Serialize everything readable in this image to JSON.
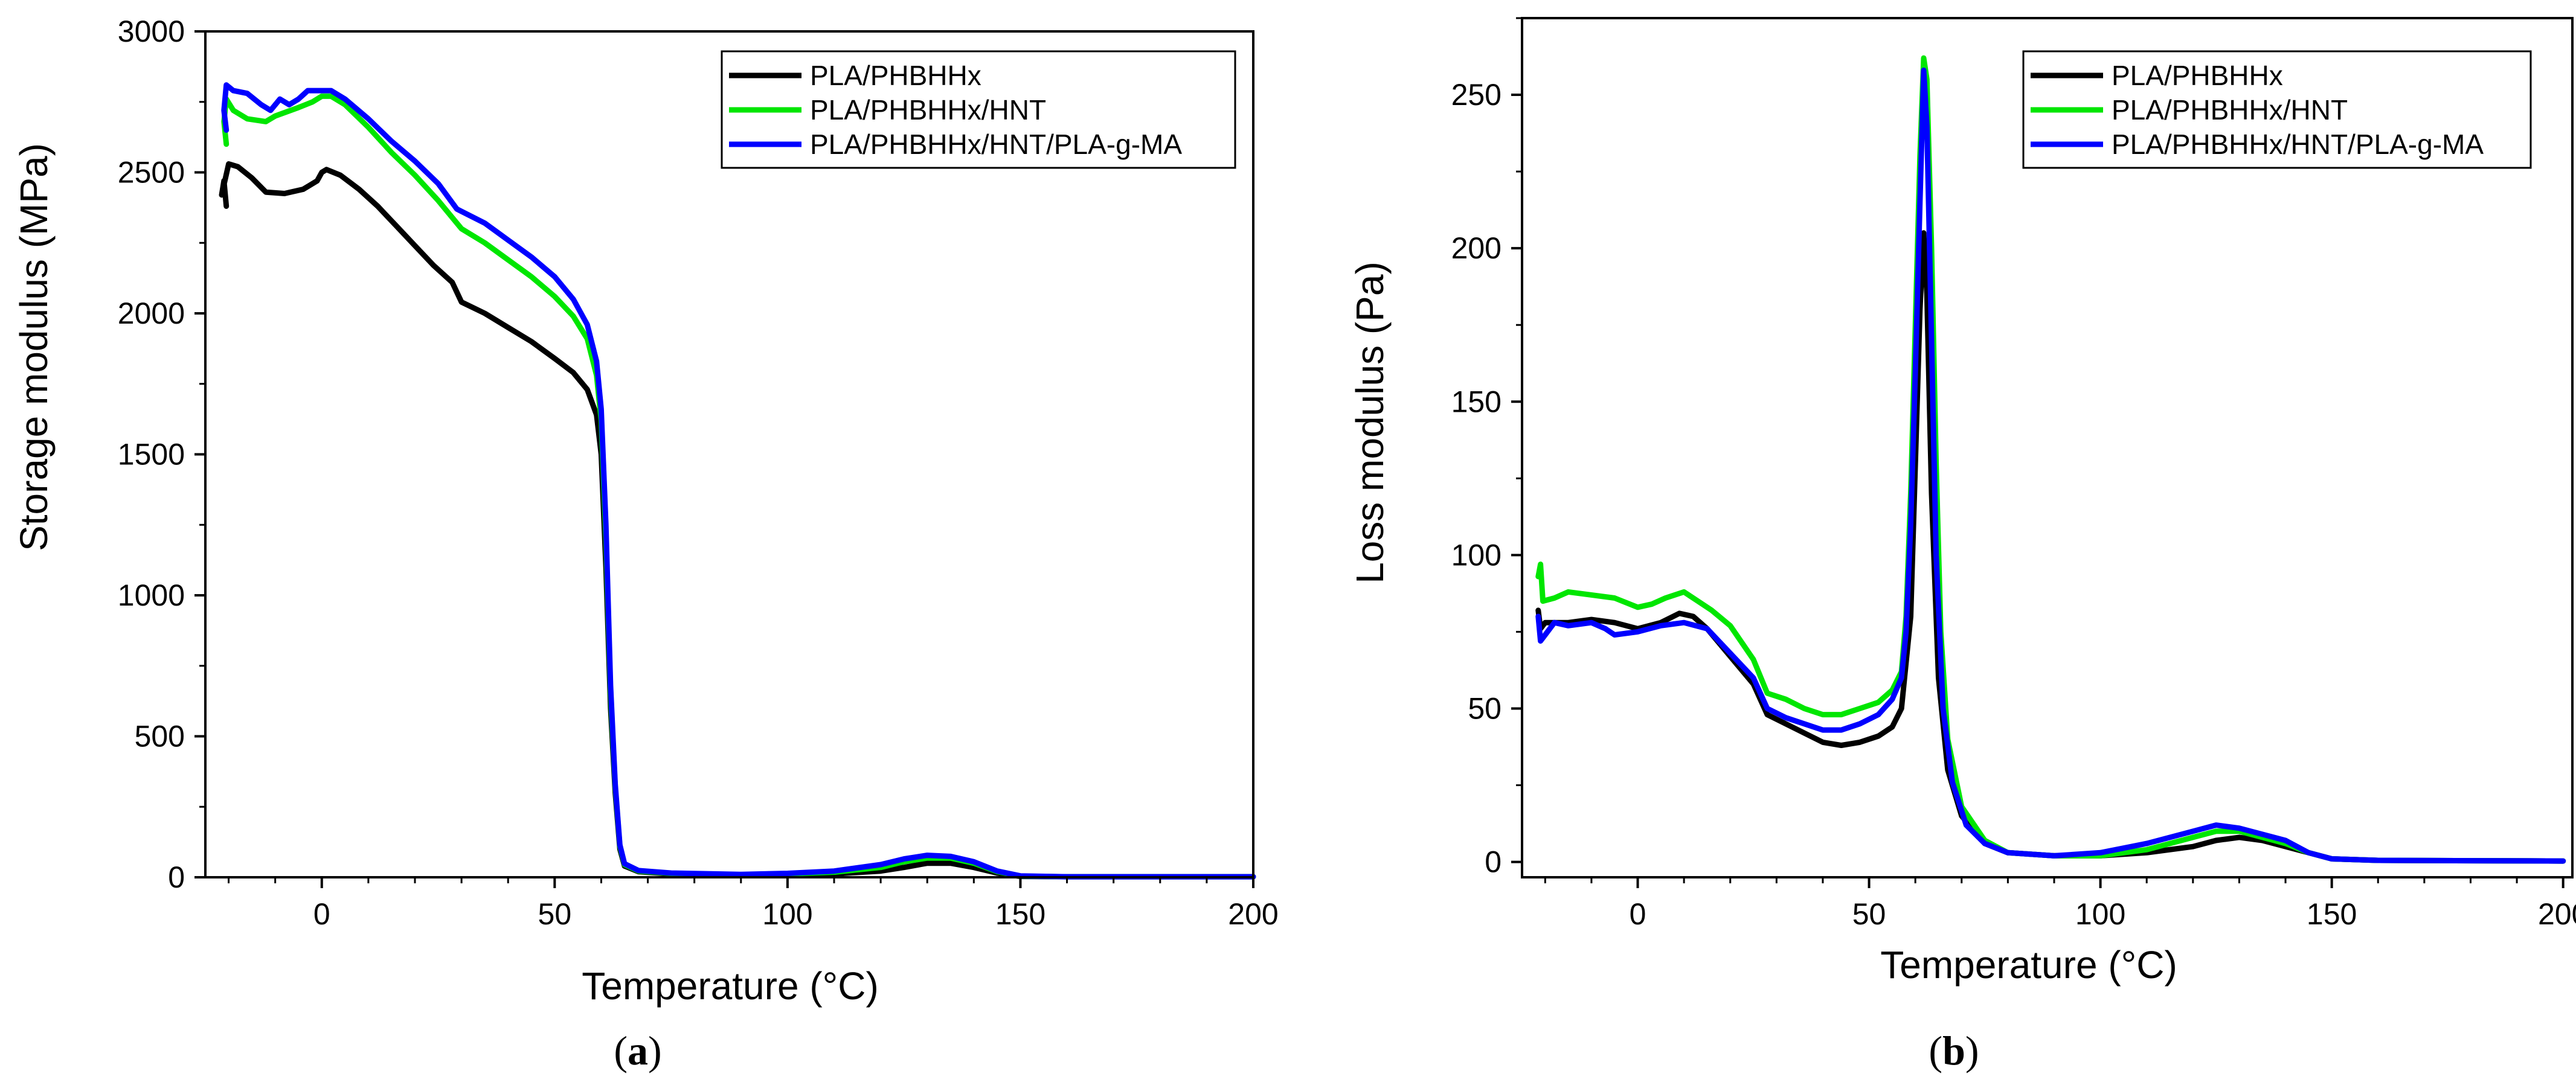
{
  "figure": {
    "panel_a_label": "a",
    "panel_b_label": "b"
  },
  "chart_data": [
    {
      "type": "line",
      "xlabel": "Temperature (°C)",
      "ylabel": "Storage modulus (MPa)",
      "xlim": [
        -25,
        200
      ],
      "ylim": [
        0,
        3000
      ],
      "xticks": [
        0,
        50,
        100,
        150,
        200
      ],
      "yticks": [
        0,
        500,
        1000,
        1500,
        2000,
        2500,
        3000
      ],
      "legend_position": "top-right",
      "grid": false,
      "series": [
        {
          "name": "PLA/PHBHHx",
          "color": "#000000",
          "points": [
            [
              -20.5,
              2380
            ],
            [
              -21,
              2470
            ],
            [
              -21.5,
              2420
            ],
            [
              -20,
              2530
            ],
            [
              -18,
              2520
            ],
            [
              -15,
              2480
            ],
            [
              -12,
              2430
            ],
            [
              -8,
              2425
            ],
            [
              -4,
              2440
            ],
            [
              -1,
              2470
            ],
            [
              0,
              2500
            ],
            [
              1,
              2510
            ],
            [
              4,
              2490
            ],
            [
              8,
              2440
            ],
            [
              12,
              2380
            ],
            [
              16,
              2310
            ],
            [
              20,
              2240
            ],
            [
              24,
              2170
            ],
            [
              28,
              2110
            ],
            [
              30,
              2040
            ],
            [
              35,
              2000
            ],
            [
              40,
              1950
            ],
            [
              45,
              1900
            ],
            [
              50,
              1840
            ],
            [
              54,
              1790
            ],
            [
              57,
              1730
            ],
            [
              59,
              1640
            ],
            [
              60,
              1500
            ],
            [
              61,
              1100
            ],
            [
              62,
              600
            ],
            [
              63,
              300
            ],
            [
              64,
              100
            ],
            [
              65,
              40
            ],
            [
              68,
              20
            ],
            [
              75,
              12
            ],
            [
              90,
              8
            ],
            [
              100,
              10
            ],
            [
              110,
              12
            ],
            [
              120,
              22
            ],
            [
              125,
              35
            ],
            [
              130,
              50
            ],
            [
              135,
              50
            ],
            [
              140,
              35
            ],
            [
              145,
              15
            ],
            [
              150,
              3
            ],
            [
              160,
              2
            ],
            [
              200,
              2
            ]
          ]
        },
        {
          "name": "PLA/PHBHHx/HNT",
          "color": "#00e600",
          "points": [
            [
              -20.5,
              2600
            ],
            [
              -21,
              2680
            ],
            [
              -20.5,
              2760
            ],
            [
              -19,
              2720
            ],
            [
              -16,
              2690
            ],
            [
              -12,
              2680
            ],
            [
              -10,
              2700
            ],
            [
              -5,
              2730
            ],
            [
              -2,
              2750
            ],
            [
              0,
              2770
            ],
            [
              2,
              2770
            ],
            [
              5,
              2740
            ],
            [
              10,
              2660
            ],
            [
              15,
              2570
            ],
            [
              20,
              2490
            ],
            [
              25,
              2400
            ],
            [
              30,
              2300
            ],
            [
              35,
              2250
            ],
            [
              40,
              2190
            ],
            [
              45,
              2130
            ],
            [
              50,
              2060
            ],
            [
              54,
              1990
            ],
            [
              57,
              1910
            ],
            [
              59,
              1780
            ],
            [
              60,
              1620
            ],
            [
              61,
              1200
            ],
            [
              62,
              650
            ],
            [
              63,
              320
            ],
            [
              64,
              110
            ],
            [
              65,
              45
            ],
            [
              68,
              22
            ],
            [
              75,
              14
            ],
            [
              90,
              9
            ],
            [
              100,
              12
            ],
            [
              110,
              18
            ],
            [
              120,
              35
            ],
            [
              125,
              55
            ],
            [
              130,
              68
            ],
            [
              135,
              68
            ],
            [
              140,
              50
            ],
            [
              145,
              20
            ],
            [
              150,
              4
            ],
            [
              160,
              2
            ],
            [
              200,
              2
            ]
          ]
        },
        {
          "name": "PLA/PHBHHx/HNT/PLA-g-MA",
          "color": "#0000ff",
          "points": [
            [
              -20.5,
              2650
            ],
            [
              -21,
              2720
            ],
            [
              -20.5,
              2810
            ],
            [
              -19,
              2790
            ],
            [
              -16,
              2780
            ],
            [
              -13,
              2740
            ],
            [
              -11,
              2720
            ],
            [
              -9,
              2760
            ],
            [
              -7,
              2740
            ],
            [
              -5,
              2760
            ],
            [
              -3,
              2790
            ],
            [
              0,
              2790
            ],
            [
              2,
              2790
            ],
            [
              5,
              2760
            ],
            [
              10,
              2690
            ],
            [
              15,
              2610
            ],
            [
              20,
              2540
            ],
            [
              25,
              2460
            ],
            [
              29,
              2370
            ],
            [
              35,
              2320
            ],
            [
              40,
              2260
            ],
            [
              45,
              2200
            ],
            [
              50,
              2130
            ],
            [
              54,
              2050
            ],
            [
              57,
              1960
            ],
            [
              59,
              1830
            ],
            [
              60,
              1660
            ],
            [
              61,
              1250
            ],
            [
              62,
              680
            ],
            [
              63,
              330
            ],
            [
              64,
              115
            ],
            [
              65,
              48
            ],
            [
              68,
              24
            ],
            [
              75,
              15
            ],
            [
              90,
              10
            ],
            [
              100,
              14
            ],
            [
              110,
              22
            ],
            [
              120,
              45
            ],
            [
              125,
              65
            ],
            [
              130,
              78
            ],
            [
              135,
              74
            ],
            [
              140,
              55
            ],
            [
              145,
              22
            ],
            [
              150,
              5
            ],
            [
              160,
              2
            ],
            [
              200,
              2
            ]
          ]
        }
      ]
    },
    {
      "type": "line",
      "xlabel": "Temperature (°C)",
      "ylabel": "Loss modulus (Pa)",
      "xlim": [
        -25,
        202
      ],
      "ylim": [
        -5,
        275
      ],
      "xticks": [
        0,
        50,
        100,
        150,
        200
      ],
      "yticks": [
        0,
        50,
        100,
        150,
        200,
        250
      ],
      "legend_position": "top-right",
      "grid": false,
      "series": [
        {
          "name": "PLA/PHBHHx",
          "color": "#000000",
          "points": [
            [
              -21.5,
              82
            ],
            [
              -21,
              76
            ],
            [
              -20,
              78
            ],
            [
              -15,
              78
            ],
            [
              -10,
              79
            ],
            [
              -5,
              78
            ],
            [
              0,
              76
            ],
            [
              5,
              78
            ],
            [
              9,
              81
            ],
            [
              12,
              80
            ],
            [
              15,
              76
            ],
            [
              20,
              67
            ],
            [
              25,
              58
            ],
            [
              28,
              48
            ],
            [
              32,
              45
            ],
            [
              36,
              42
            ],
            [
              40,
              39
            ],
            [
              44,
              38
            ],
            [
              48,
              39
            ],
            [
              52,
              41
            ],
            [
              55,
              44
            ],
            [
              57,
              50
            ],
            [
              59,
              80
            ],
            [
              60,
              130
            ],
            [
              61,
              180
            ],
            [
              61.8,
              205
            ],
            [
              62.5,
              185
            ],
            [
              63.5,
              120
            ],
            [
              65,
              60
            ],
            [
              67,
              30
            ],
            [
              70,
              15
            ],
            [
              75,
              6
            ],
            [
              80,
              3
            ],
            [
              90,
              2
            ],
            [
              100,
              2
            ],
            [
              110,
              3
            ],
            [
              120,
              5
            ],
            [
              125,
              7
            ],
            [
              130,
              8
            ],
            [
              135,
              7
            ],
            [
              140,
              5
            ],
            [
              145,
              3
            ],
            [
              150,
              1
            ],
            [
              160,
              0.5
            ],
            [
              200,
              0.3
            ]
          ]
        },
        {
          "name": "PLA/PHBHHx/HNT",
          "color": "#00e600",
          "points": [
            [
              -21.5,
              93
            ],
            [
              -21,
              97
            ],
            [
              -20.5,
              85
            ],
            [
              -18,
              86
            ],
            [
              -15,
              88
            ],
            [
              -10,
              87
            ],
            [
              -5,
              86
            ],
            [
              0,
              83
            ],
            [
              3,
              84
            ],
            [
              6,
              86
            ],
            [
              10,
              88
            ],
            [
              13,
              85
            ],
            [
              16,
              82
            ],
            [
              20,
              77
            ],
            [
              25,
              66
            ],
            [
              28,
              55
            ],
            [
              32,
              53
            ],
            [
              36,
              50
            ],
            [
              40,
              48
            ],
            [
              44,
              48
            ],
            [
              48,
              50
            ],
            [
              52,
              52
            ],
            [
              55,
              56
            ],
            [
              57,
              62
            ],
            [
              58,
              80
            ],
            [
              59,
              120
            ],
            [
              60,
              175
            ],
            [
              61,
              230
            ],
            [
              61.8,
              262
            ],
            [
              62.5,
              255
            ],
            [
              63.5,
              200
            ],
            [
              64.5,
              130
            ],
            [
              65.5,
              75
            ],
            [
              67,
              40
            ],
            [
              70,
              18
            ],
            [
              75,
              7
            ],
            [
              80,
              3
            ],
            [
              90,
              2
            ],
            [
              100,
              2
            ],
            [
              110,
              4
            ],
            [
              120,
              8
            ],
            [
              125,
              10
            ],
            [
              130,
              10
            ],
            [
              135,
              8
            ],
            [
              140,
              6
            ],
            [
              145,
              3
            ],
            [
              150,
              1
            ],
            [
              160,
              0.5
            ],
            [
              200,
              0.3
            ]
          ]
        },
        {
          "name": "PLA/PHBHHx/HNT/PLA-g-MA",
          "color": "#0000ff",
          "points": [
            [
              -21.5,
              80
            ],
            [
              -21,
              72
            ],
            [
              -20,
              74
            ],
            [
              -18,
              78
            ],
            [
              -15,
              77
            ],
            [
              -10,
              78
            ],
            [
              -7,
              76
            ],
            [
              -5,
              74
            ],
            [
              0,
              75
            ],
            [
              5,
              77
            ],
            [
              10,
              78
            ],
            [
              15,
              76
            ],
            [
              20,
              68
            ],
            [
              25,
              60
            ],
            [
              28,
              50
            ],
            [
              32,
              47
            ],
            [
              36,
              45
            ],
            [
              40,
              43
            ],
            [
              44,
              43
            ],
            [
              48,
              45
            ],
            [
              52,
              48
            ],
            [
              55,
              53
            ],
            [
              57,
              60
            ],
            [
              58,
              75
            ],
            [
              59,
              110
            ],
            [
              60,
              160
            ],
            [
              61,
              215
            ],
            [
              61.8,
              258
            ],
            [
              62.5,
              240
            ],
            [
              63.5,
              170
            ],
            [
              64.5,
              100
            ],
            [
              66,
              50
            ],
            [
              68,
              26
            ],
            [
              71,
              12
            ],
            [
              75,
              6
            ],
            [
              80,
              3
            ],
            [
              90,
              2
            ],
            [
              100,
              3
            ],
            [
              110,
              6
            ],
            [
              120,
              10
            ],
            [
              125,
              12
            ],
            [
              130,
              11
            ],
            [
              135,
              9
            ],
            [
              140,
              7
            ],
            [
              145,
              3
            ],
            [
              150,
              1
            ],
            [
              160,
              0.5
            ],
            [
              200,
              0.3
            ]
          ]
        }
      ]
    }
  ]
}
